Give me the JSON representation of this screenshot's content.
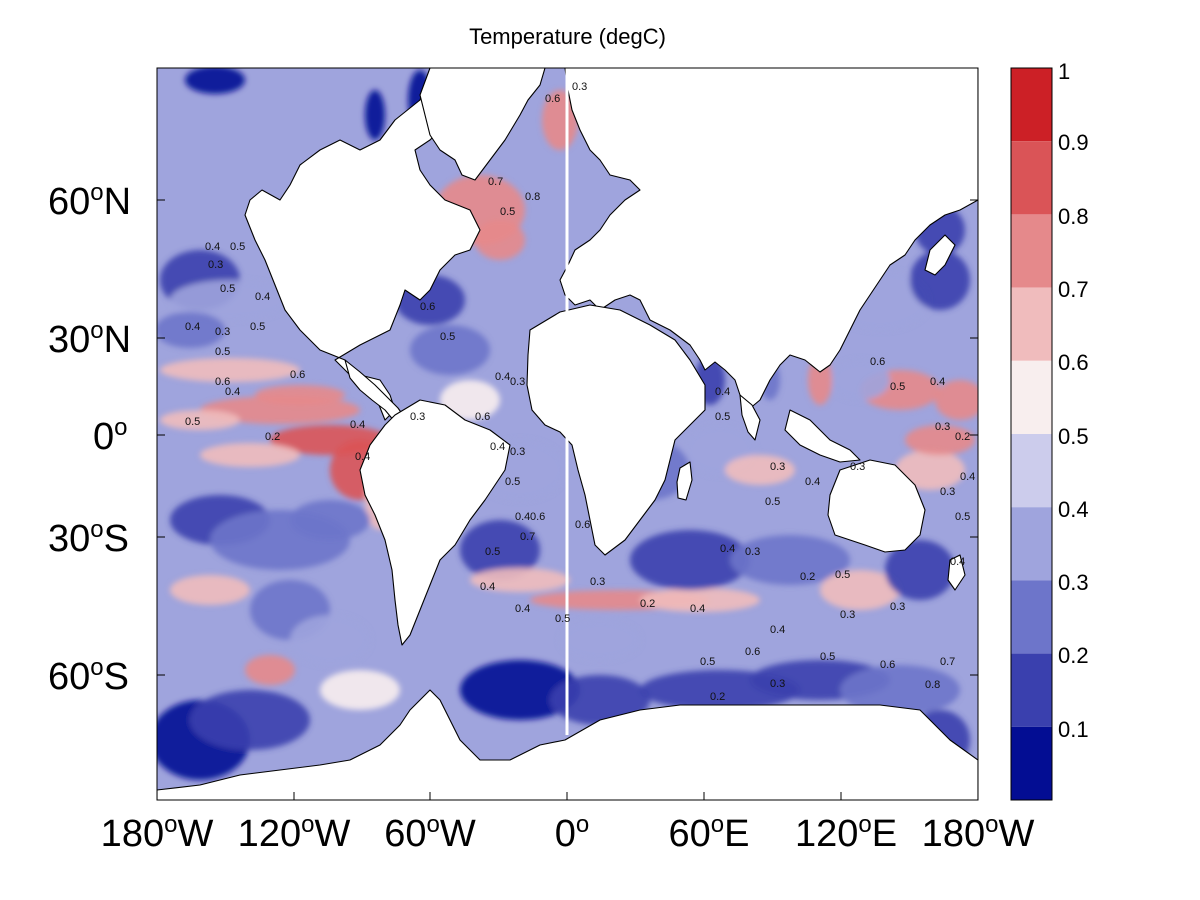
{
  "title": "Temperature (degC)",
  "y_ticks": [
    {
      "deg": "60",
      "hemi": "N"
    },
    {
      "deg": "30",
      "hemi": "N"
    },
    {
      "deg": "0",
      "hemi": ""
    },
    {
      "deg": "30",
      "hemi": "S"
    },
    {
      "deg": "60",
      "hemi": "S"
    }
  ],
  "x_ticks": [
    {
      "deg": "180",
      "hemi": "W"
    },
    {
      "deg": "120",
      "hemi": "W"
    },
    {
      "deg": "60",
      "hemi": "W"
    },
    {
      "deg": "0",
      "hemi": ""
    },
    {
      "deg": "60",
      "hemi": "E"
    },
    {
      "deg": "120",
      "hemi": "E"
    },
    {
      "deg": "180",
      "hemi": "W"
    }
  ],
  "colorbar": {
    "labels": [
      "1",
      "0.9",
      "0.8",
      "0.7",
      "0.6",
      "0.5",
      "0.4",
      "0.3",
      "0.2",
      "0.1"
    ],
    "bins": [
      {
        "range": [
          0.9,
          1.0
        ],
        "color": "#cc2026"
      },
      {
        "range": [
          0.8,
          0.9
        ],
        "color": "#da5457"
      },
      {
        "range": [
          0.7,
          0.8
        ],
        "color": "#e5898b"
      },
      {
        "range": [
          0.6,
          0.7
        ],
        "color": "#f0bcbd"
      },
      {
        "range": [
          0.5,
          0.6
        ],
        "color": "#f8eeee"
      },
      {
        "range": [
          0.4,
          0.5
        ],
        "color": "#ccccec"
      },
      {
        "range": [
          0.3,
          0.4
        ],
        "color": "#9fa4dd"
      },
      {
        "range": [
          0.2,
          0.3
        ],
        "color": "#6d75ca"
      },
      {
        "range": [
          0.1,
          0.2
        ],
        "color": "#3a40ae"
      },
      {
        "range": [
          0.0,
          0.1
        ],
        "color": "#030d93"
      }
    ]
  },
  "contour_labels": [
    "0.6",
    "0.3",
    "0.7",
    "0.5",
    "0.8",
    "0.4",
    "0.5",
    "0.3",
    "0.5",
    "0.4",
    "0.4",
    "0.3",
    "0.5",
    "0.6",
    "0.6",
    "0.4",
    "0.5",
    "0.2",
    "0.4",
    "0.3",
    "0.6",
    "0.4",
    "0.3",
    "0.5",
    "0.4",
    "0.6",
    "0.7",
    "0.5",
    "0.4",
    "0.4",
    "0.5",
    "0.6",
    "0.3",
    "0.2",
    "0.4",
    "0.5",
    "0.6",
    "0.4",
    "0.3",
    "0.2",
    "0.5",
    "0.3",
    "0.4",
    "0.3",
    "0.5",
    "0.6",
    "0.7",
    "0.8",
    "0.5",
    "0.4",
    "0.3",
    "0.5",
    "0.4",
    "0.3",
    "0.6",
    "0.5",
    "0.4",
    "0.3",
    "0.2",
    "0.4",
    "0.3",
    "0.5",
    "0.4",
    "0.3",
    "0.5",
    "0.4",
    "0.6",
    "0.5",
    "0.4",
    "0.3",
    "0.2"
  ]
}
